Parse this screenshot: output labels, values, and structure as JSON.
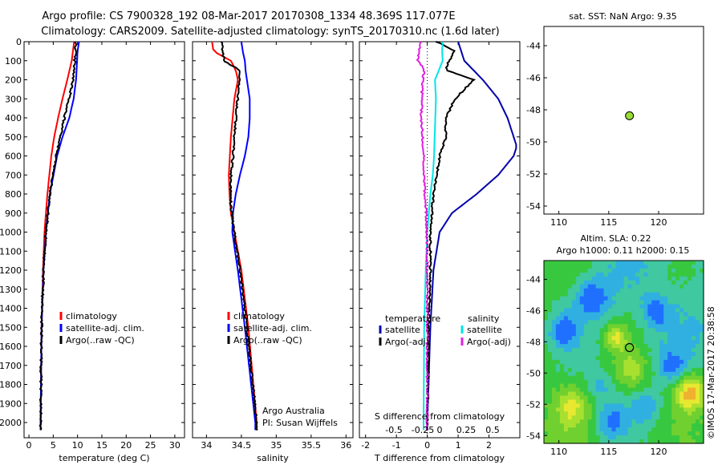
{
  "header": {
    "title_line1": "Argo profile: CS 7900328_192 08-Mar-2017 20170308_1334 48.369S 117.077E",
    "title_line2": "Climatology: CARS2009. Satellite-adjusted climatology: synTS_20170310.nc (1.6d later)"
  },
  "chart_data": [
    {
      "type": "line",
      "panel": "temperature",
      "xlabel": "temperature (deg C)",
      "ylabel": "",
      "xlim": [
        -1,
        32
      ],
      "ylim": [
        2080,
        0
      ],
      "xticks": [
        "0",
        "5",
        "10",
        "15",
        "20",
        "25",
        "30"
      ],
      "yticks": [
        "0",
        "100",
        "200",
        "300",
        "400",
        "500",
        "600",
        "700",
        "800",
        "900",
        "1000",
        "1100",
        "1200",
        "1300",
        "1400",
        "1500",
        "1600",
        "1700",
        "1800",
        "1900",
        "2000"
      ],
      "legend": [
        "climatology",
        "satellite-adj. clim.",
        "Argo(..raw -QC)"
      ],
      "series": [
        {
          "name": "climatology",
          "color": "#ff0000",
          "depth": [
            0,
            100,
            200,
            300,
            400,
            500,
            600,
            800,
            1000,
            1200,
            1500,
            2000
          ],
          "values": [
            9.3,
            8.8,
            7.9,
            6.9,
            6.0,
            5.2,
            4.6,
            3.8,
            3.2,
            2.9,
            2.6,
            2.4
          ]
        },
        {
          "name": "satellite-adj. clim.",
          "color": "#0000ff",
          "depth": [
            0,
            50,
            100,
            200,
            300,
            400,
            500,
            600,
            800,
            1000,
            1200,
            1500,
            2000
          ],
          "values": [
            10.3,
            10.0,
            9.9,
            9.7,
            9.2,
            8.3,
            6.9,
            5.8,
            4.3,
            3.5,
            3.0,
            2.6,
            2.4
          ]
        },
        {
          "name": "Argo(..raw -QC)",
          "color": "#000000",
          "depth": [
            0,
            50,
            100,
            150,
            200,
            250,
            300,
            400,
            500,
            600,
            700,
            800,
            900,
            1000,
            1200,
            1500,
            2000
          ],
          "values": [
            9.6,
            9.6,
            9.4,
            9.3,
            9.1,
            8.7,
            8.2,
            7.3,
            6.5,
            5.6,
            4.9,
            4.3,
            3.9,
            3.5,
            3.0,
            2.6,
            2.4
          ]
        }
      ]
    },
    {
      "type": "line",
      "panel": "salinity",
      "xlabel": "salinity",
      "xlim": [
        33.8,
        36.1
      ],
      "ylim": [
        2080,
        0
      ],
      "xticks": [
        "34",
        "34.5",
        "35",
        "35.5",
        "36"
      ],
      "legend": [
        "climatology",
        "satellite-adj. clim.",
        "Argo(..raw -QC)"
      ],
      "annotation": [
        "Argo Australia",
        "PI: Susan Wijffels"
      ],
      "series": [
        {
          "name": "climatology",
          "color": "#ff0000",
          "depth": [
            0,
            50,
            100,
            150,
            200,
            300,
            500,
            700,
            800,
            900,
            1000,
            1200,
            1500,
            2000
          ],
          "values": [
            34.08,
            34.1,
            34.35,
            34.42,
            34.45,
            34.4,
            34.35,
            34.32,
            34.33,
            34.35,
            34.4,
            34.5,
            34.6,
            34.72
          ]
        },
        {
          "name": "satellite-adj. clim.",
          "color": "#0000ff",
          "depth": [
            0,
            50,
            100,
            150,
            200,
            300,
            400,
            500,
            600,
            700,
            800,
            900,
            1000,
            1200,
            1500,
            2000
          ],
          "values": [
            34.5,
            34.52,
            34.55,
            34.56,
            34.58,
            34.62,
            34.62,
            34.6,
            34.55,
            34.48,
            34.42,
            34.38,
            34.37,
            34.45,
            34.55,
            34.7
          ]
        },
        {
          "name": "Argo(..raw -QC)",
          "color": "#000000",
          "depth": [
            0,
            100,
            150,
            200,
            300,
            400,
            500,
            600,
            700,
            800,
            900,
            1000,
            1200,
            1500,
            2000
          ],
          "values": [
            34.22,
            34.25,
            34.48,
            34.47,
            34.45,
            34.42,
            34.4,
            34.38,
            34.35,
            34.34,
            34.36,
            34.4,
            34.48,
            34.58,
            34.72
          ]
        }
      ]
    },
    {
      "type": "line",
      "panel": "difference",
      "xlabel": "T difference from climatology",
      "xlabel_top": "S difference from climatology",
      "xlim": [
        -2.2,
        3.0
      ],
      "ylim": [
        2080,
        0
      ],
      "xticks": [
        "-2",
        "-1",
        "0",
        "1",
        "2"
      ],
      "xticks_s": [
        "-0.5",
        "-0.25",
        "0",
        "0.25",
        "0.5"
      ],
      "legend_headers": [
        "temperature",
        "salinity"
      ],
      "legend": [
        "satellite",
        "Argo(-adj)",
        "satellite",
        "Argo(-adj)"
      ],
      "series": [
        {
          "name": "satellite",
          "color": "#0000aa",
          "depth": [
            0,
            100,
            200,
            300,
            400,
            500,
            550,
            600,
            700,
            800,
            900,
            1000,
            1200,
            1500,
            2000
          ],
          "values": [
            1.0,
            1.2,
            1.8,
            2.3,
            2.6,
            2.8,
            2.9,
            2.8,
            2.3,
            1.6,
            0.8,
            0.4,
            0.2,
            0.1,
            0.0
          ]
        },
        {
          "name": "Argo(-adj)",
          "color": "#000000",
          "depth": [
            0,
            50,
            100,
            150,
            200,
            300,
            400,
            500,
            600,
            700,
            800,
            900,
            1000,
            1200,
            1500,
            2000
          ],
          "values": [
            0.3,
            0.9,
            0.7,
            0.6,
            1.5,
            0.9,
            0.6,
            0.6,
            0.4,
            0.3,
            0.2,
            0.15,
            0.1,
            0.1,
            0.05,
            0.0
          ]
        },
        {
          "name": "satellite",
          "color": "#00e5e5",
          "depth": [
            0,
            50,
            100,
            200,
            300,
            400,
            500,
            600,
            700,
            800,
            900,
            1000,
            1200,
            1500,
            2000
          ],
          "values": [
            0.5,
            0.48,
            0.5,
            0.25,
            0.28,
            0.26,
            0.24,
            0.22,
            0.18,
            0.1,
            0.05,
            0.0,
            -0.05,
            -0.1,
            -0.12
          ]
        },
        {
          "name": "Argo(-adj)",
          "color": "#e020e0",
          "depth": [
            0,
            100,
            150,
            200,
            300,
            400,
            500,
            600,
            700,
            800,
            900,
            1000,
            1100,
            1500,
            2000
          ],
          "values": [
            -0.22,
            -0.3,
            -0.1,
            -0.15,
            -0.18,
            -0.2,
            -0.15,
            -0.12,
            -0.1,
            -0.08,
            -0.04,
            -0.02,
            0.0,
            0.0,
            0.0
          ]
        }
      ]
    },
    {
      "type": "scatter",
      "panel": "sst-map",
      "title": "sat. SST: NaN Argo: 9.35",
      "xlim": [
        108.5,
        124.5
      ],
      "ylim": [
        -54.5,
        -42.8
      ],
      "xticks": [
        "110",
        "115",
        "120"
      ],
      "yticks": [
        "-44",
        "-46",
        "-48",
        "-50",
        "-52",
        "-54"
      ],
      "point": {
        "x": 117.077,
        "y": -48.369,
        "color": "#99dd33"
      }
    },
    {
      "type": "heatmap",
      "panel": "sla-map",
      "title_line1": "Altim. SLA: 0.22",
      "title_line2": "Argo h1000: 0.11 h2000: 0.15",
      "xlim": [
        108.5,
        124.5
      ],
      "ylim": [
        -54.5,
        -42.8
      ],
      "xticks": [
        "110",
        "115",
        "120"
      ],
      "yticks": [
        "-44",
        "-46",
        "-48",
        "-50",
        "-52",
        "-54"
      ],
      "point": {
        "x": 117.077,
        "y": -48.369
      }
    }
  ],
  "footer": {
    "credit": "©IMOS 17-Mar-2017 20:38:58"
  }
}
